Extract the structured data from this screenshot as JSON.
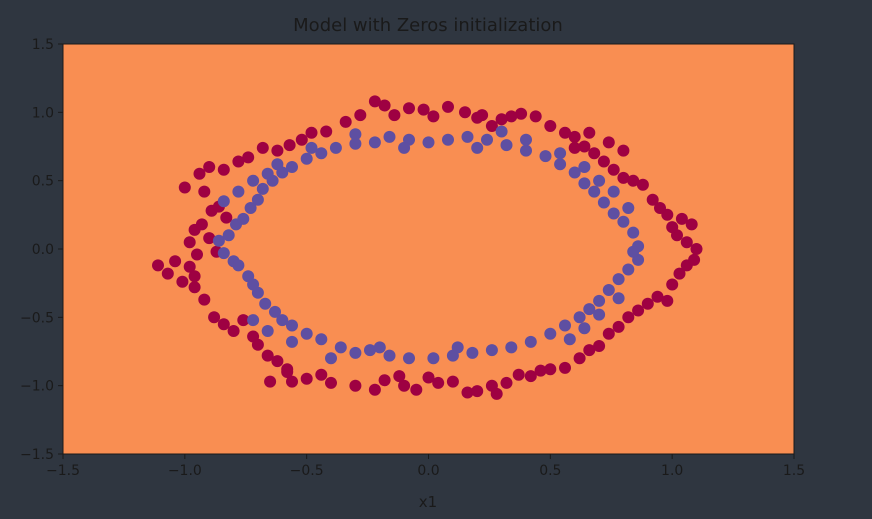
{
  "chart_data": {
    "type": "scatter",
    "title": "Model with Zeros initialization",
    "xlabel": "x1",
    "ylabel": "",
    "xlim": [
      -1.5,
      1.5
    ],
    "ylim": [
      -1.5,
      1.5
    ],
    "xticks": [
      "−1.5",
      "−1.0",
      "−0.5",
      "0.0",
      "0.5",
      "1.0",
      "1.5"
    ],
    "yticks": [
      "1.5",
      "1.0",
      "0.5",
      "0.0",
      "−0.5",
      "−1.0",
      "−1.5"
    ],
    "grid": false,
    "legend": "none",
    "decision_region_color": "#f98e52",
    "series": [
      {
        "color": "#9e0142",
        "points": [
          [
            -1.11,
            -0.12
          ],
          [
            -1.07,
            -0.18
          ],
          [
            -1.04,
            -0.09
          ],
          [
            -1.01,
            -0.24
          ],
          [
            -0.98,
            -0.13
          ],
          [
            -0.96,
            -0.28
          ],
          [
            -0.98,
            0.05
          ],
          [
            -0.96,
            0.14
          ],
          [
            -0.93,
            0.18
          ],
          [
            -0.92,
            0.42
          ],
          [
            -0.89,
            0.28
          ],
          [
            -0.86,
            0.31
          ],
          [
            -0.83,
            0.23
          ],
          [
            -0.9,
            0.08
          ],
          [
            -0.87,
            -0.02
          ],
          [
            -0.95,
            -0.04
          ],
          [
            -0.92,
            -0.37
          ],
          [
            -0.88,
            -0.5
          ],
          [
            -0.84,
            -0.55
          ],
          [
            -0.8,
            -0.6
          ],
          [
            -0.76,
            -0.52
          ],
          [
            -0.72,
            -0.64
          ],
          [
            -0.7,
            -0.7
          ],
          [
            -0.66,
            -0.78
          ],
          [
            -0.62,
            -0.82
          ],
          [
            -0.58,
            -0.88
          ],
          [
            -0.56,
            -0.97
          ],
          [
            -0.5,
            -0.95
          ],
          [
            -0.44,
            -0.92
          ],
          [
            -0.4,
            -0.98
          ],
          [
            -0.3,
            -1.0
          ],
          [
            -0.22,
            -1.03
          ],
          [
            -0.18,
            -0.96
          ],
          [
            -0.1,
            -1.0
          ],
          [
            -0.05,
            -1.03
          ],
          [
            0.0,
            -0.94
          ],
          [
            0.04,
            -0.98
          ],
          [
            0.1,
            -0.97
          ],
          [
            0.16,
            -1.05
          ],
          [
            0.2,
            -1.04
          ],
          [
            0.26,
            -1.0
          ],
          [
            0.32,
            -0.98
          ],
          [
            0.37,
            -0.92
          ],
          [
            0.42,
            -0.93
          ],
          [
            0.46,
            -0.89
          ],
          [
            0.5,
            -0.88
          ],
          [
            0.56,
            -0.87
          ],
          [
            0.62,
            -0.8
          ],
          [
            0.66,
            -0.74
          ],
          [
            0.7,
            -0.71
          ],
          [
            0.74,
            -0.62
          ],
          [
            0.78,
            -0.57
          ],
          [
            0.82,
            -0.5
          ],
          [
            0.86,
            -0.45
          ],
          [
            0.9,
            -0.4
          ],
          [
            0.94,
            -0.35
          ],
          [
            0.98,
            -0.38
          ],
          [
            1.0,
            -0.26
          ],
          [
            1.03,
            -0.18
          ],
          [
            1.06,
            -0.12
          ],
          [
            1.09,
            -0.08
          ],
          [
            1.1,
            0.0
          ],
          [
            1.06,
            0.05
          ],
          [
            1.02,
            0.1
          ],
          [
            1.0,
            0.16
          ],
          [
            1.04,
            0.22
          ],
          [
            1.08,
            0.18
          ],
          [
            0.98,
            0.25
          ],
          [
            0.95,
            0.3
          ],
          [
            0.92,
            0.36
          ],
          [
            0.88,
            0.47
          ],
          [
            0.84,
            0.5
          ],
          [
            0.8,
            0.52
          ],
          [
            0.76,
            0.58
          ],
          [
            0.72,
            0.64
          ],
          [
            0.68,
            0.7
          ],
          [
            0.64,
            0.75
          ],
          [
            0.6,
            0.82
          ],
          [
            0.56,
            0.85
          ],
          [
            0.5,
            0.9
          ],
          [
            0.44,
            0.97
          ],
          [
            0.38,
            0.99
          ],
          [
            0.34,
            0.97
          ],
          [
            0.3,
            0.95
          ],
          [
            0.26,
            0.9
          ],
          [
            0.22,
            0.98
          ],
          [
            0.2,
            0.96
          ],
          [
            0.15,
            1.0
          ],
          [
            0.08,
            1.04
          ],
          [
            0.02,
            0.97
          ],
          [
            -0.02,
            1.02
          ],
          [
            -0.08,
            1.03
          ],
          [
            -0.14,
            0.98
          ],
          [
            -0.18,
            1.05
          ],
          [
            -0.22,
            1.08
          ],
          [
            -0.28,
            0.98
          ],
          [
            -0.34,
            0.93
          ],
          [
            -0.42,
            0.86
          ],
          [
            -0.48,
            0.85
          ],
          [
            -0.52,
            0.8
          ],
          [
            -0.57,
            0.76
          ],
          [
            -0.62,
            0.72
          ],
          [
            -0.68,
            0.74
          ],
          [
            -0.74,
            0.67
          ],
          [
            -0.78,
            0.64
          ],
          [
            -0.84,
            0.58
          ],
          [
            -0.9,
            0.6
          ],
          [
            -0.94,
            0.55
          ],
          [
            -1.0,
            0.45
          ],
          [
            -0.96,
            -0.2
          ],
          [
            -0.58,
            -0.9
          ],
          [
            -0.65,
            -0.97
          ],
          [
            0.8,
            0.72
          ],
          [
            0.74,
            0.78
          ],
          [
            0.6,
            0.74
          ],
          [
            0.66,
            0.85
          ],
          [
            0.28,
            -1.06
          ],
          [
            -0.12,
            -0.93
          ]
        ]
      },
      {
        "color": "#5e4fa2",
        "points": [
          [
            -0.86,
            0.06
          ],
          [
            -0.84,
            -0.03
          ],
          [
            -0.82,
            0.1
          ],
          [
            -0.8,
            -0.09
          ],
          [
            -0.79,
            0.18
          ],
          [
            -0.78,
            -0.12
          ],
          [
            -0.76,
            0.22
          ],
          [
            -0.74,
            -0.2
          ],
          [
            -0.73,
            0.3
          ],
          [
            -0.72,
            -0.26
          ],
          [
            -0.7,
            0.36
          ],
          [
            -0.7,
            -0.32
          ],
          [
            -0.68,
            0.44
          ],
          [
            -0.67,
            -0.4
          ],
          [
            -0.64,
            0.5
          ],
          [
            -0.63,
            -0.46
          ],
          [
            -0.6,
            0.56
          ],
          [
            -0.6,
            -0.52
          ],
          [
            -0.56,
            0.6
          ],
          [
            -0.56,
            -0.56
          ],
          [
            -0.5,
            0.66
          ],
          [
            -0.5,
            -0.62
          ],
          [
            -0.44,
            0.7
          ],
          [
            -0.44,
            -0.66
          ],
          [
            -0.38,
            0.74
          ],
          [
            -0.36,
            -0.72
          ],
          [
            -0.3,
            0.77
          ],
          [
            -0.3,
            -0.76
          ],
          [
            -0.22,
            0.78
          ],
          [
            -0.24,
            -0.74
          ],
          [
            -0.16,
            0.82
          ],
          [
            -0.16,
            -0.78
          ],
          [
            -0.08,
            0.8
          ],
          [
            -0.08,
            -0.8
          ],
          [
            0.0,
            0.78
          ],
          [
            0.02,
            -0.8
          ],
          [
            0.08,
            0.8
          ],
          [
            0.1,
            -0.78
          ],
          [
            0.16,
            0.82
          ],
          [
            0.18,
            -0.76
          ],
          [
            0.24,
            0.8
          ],
          [
            0.26,
            -0.74
          ],
          [
            0.32,
            0.76
          ],
          [
            0.34,
            -0.72
          ],
          [
            0.4,
            0.72
          ],
          [
            0.42,
            -0.68
          ],
          [
            0.48,
            0.68
          ],
          [
            0.5,
            -0.62
          ],
          [
            0.54,
            0.62
          ],
          [
            0.56,
            -0.56
          ],
          [
            0.6,
            0.56
          ],
          [
            0.62,
            -0.5
          ],
          [
            0.64,
            0.48
          ],
          [
            0.66,
            -0.44
          ],
          [
            0.68,
            0.42
          ],
          [
            0.7,
            -0.38
          ],
          [
            0.72,
            0.34
          ],
          [
            0.74,
            -0.3
          ],
          [
            0.76,
            0.26
          ],
          [
            0.78,
            -0.22
          ],
          [
            0.8,
            0.2
          ],
          [
            0.82,
            -0.15
          ],
          [
            0.84,
            0.12
          ],
          [
            0.86,
            -0.08
          ],
          [
            0.86,
            0.02
          ],
          [
            0.84,
            -0.02
          ],
          [
            -0.62,
            0.62
          ],
          [
            -0.66,
            0.55
          ],
          [
            -0.72,
            0.5
          ],
          [
            -0.78,
            0.42
          ],
          [
            -0.84,
            0.35
          ],
          [
            0.64,
            0.6
          ],
          [
            0.7,
            0.5
          ],
          [
            0.76,
            0.42
          ],
          [
            0.82,
            0.3
          ],
          [
            -0.66,
            -0.6
          ],
          [
            -0.72,
            -0.52
          ],
          [
            0.64,
            -0.58
          ],
          [
            0.7,
            -0.48
          ],
          [
            0.78,
            -0.36
          ],
          [
            -0.1,
            0.74
          ],
          [
            0.2,
            0.74
          ],
          [
            0.12,
            -0.72
          ],
          [
            -0.2,
            -0.72
          ],
          [
            0.54,
            0.7
          ],
          [
            0.58,
            -0.66
          ],
          [
            -0.56,
            -0.68
          ],
          [
            -0.48,
            0.74
          ],
          [
            0.3,
            0.86
          ],
          [
            -0.3,
            0.84
          ],
          [
            0.4,
            0.8
          ],
          [
            -0.4,
            -0.8
          ]
        ]
      }
    ]
  }
}
